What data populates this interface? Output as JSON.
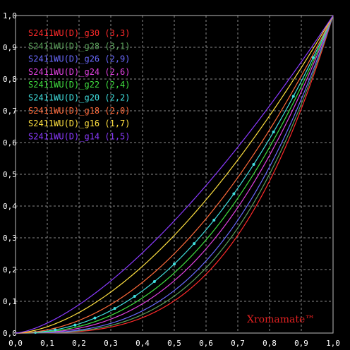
{
  "chart_data": {
    "type": "line",
    "xlim": [
      0,
      1
    ],
    "ylim": [
      0,
      1
    ],
    "grid": true,
    "legend_placement": "top-left",
    "x_ticks": [
      "0,0",
      "0,1",
      "0,2",
      "0,3",
      "0,4",
      "0,5",
      "0,6",
      "0,7",
      "0,8",
      "0,9",
      "1,0"
    ],
    "y_ticks": [
      "0,0",
      "0,1",
      "0,2",
      "0,3",
      "0,4",
      "0,5",
      "0,6",
      "0,7",
      "0,8",
      "0,9",
      "1,0"
    ],
    "series": [
      {
        "name": "S2411WU(D)_g30 (3,3)",
        "gamma": 3.3,
        "color": "#ff2a2a"
      },
      {
        "name": "S2411WU(D)_g28 (3,1)",
        "gamma": 3.1,
        "color": "#5aa05a"
      },
      {
        "name": "S2411WU(D)_g26 (2,9)",
        "gamma": 2.9,
        "color": "#6a6aff"
      },
      {
        "name": "S2411WU(D)_g24 (2,6)",
        "gamma": 2.6,
        "color": "#e040e0"
      },
      {
        "name": "S2411WU(D)_g22 (2,4)",
        "gamma": 2.4,
        "color": "#40e040"
      },
      {
        "name": "S2411WU(D)_g20 (2,2)",
        "gamma": 2.2,
        "color": "#40e0e0",
        "markers": true
      },
      {
        "name": "S2411WU(D)_g18 (2,0)",
        "gamma": 2.0,
        "color": "#ff6a3a"
      },
      {
        "name": "S2411WU(D)_g16 (1,7)",
        "gamma": 1.7,
        "color": "#ffe040"
      },
      {
        "name": "S2411WU(D)_g14 (1,5)",
        "gamma": 1.5,
        "color": "#8a3aff"
      }
    ],
    "brand": "Xromamate™"
  }
}
